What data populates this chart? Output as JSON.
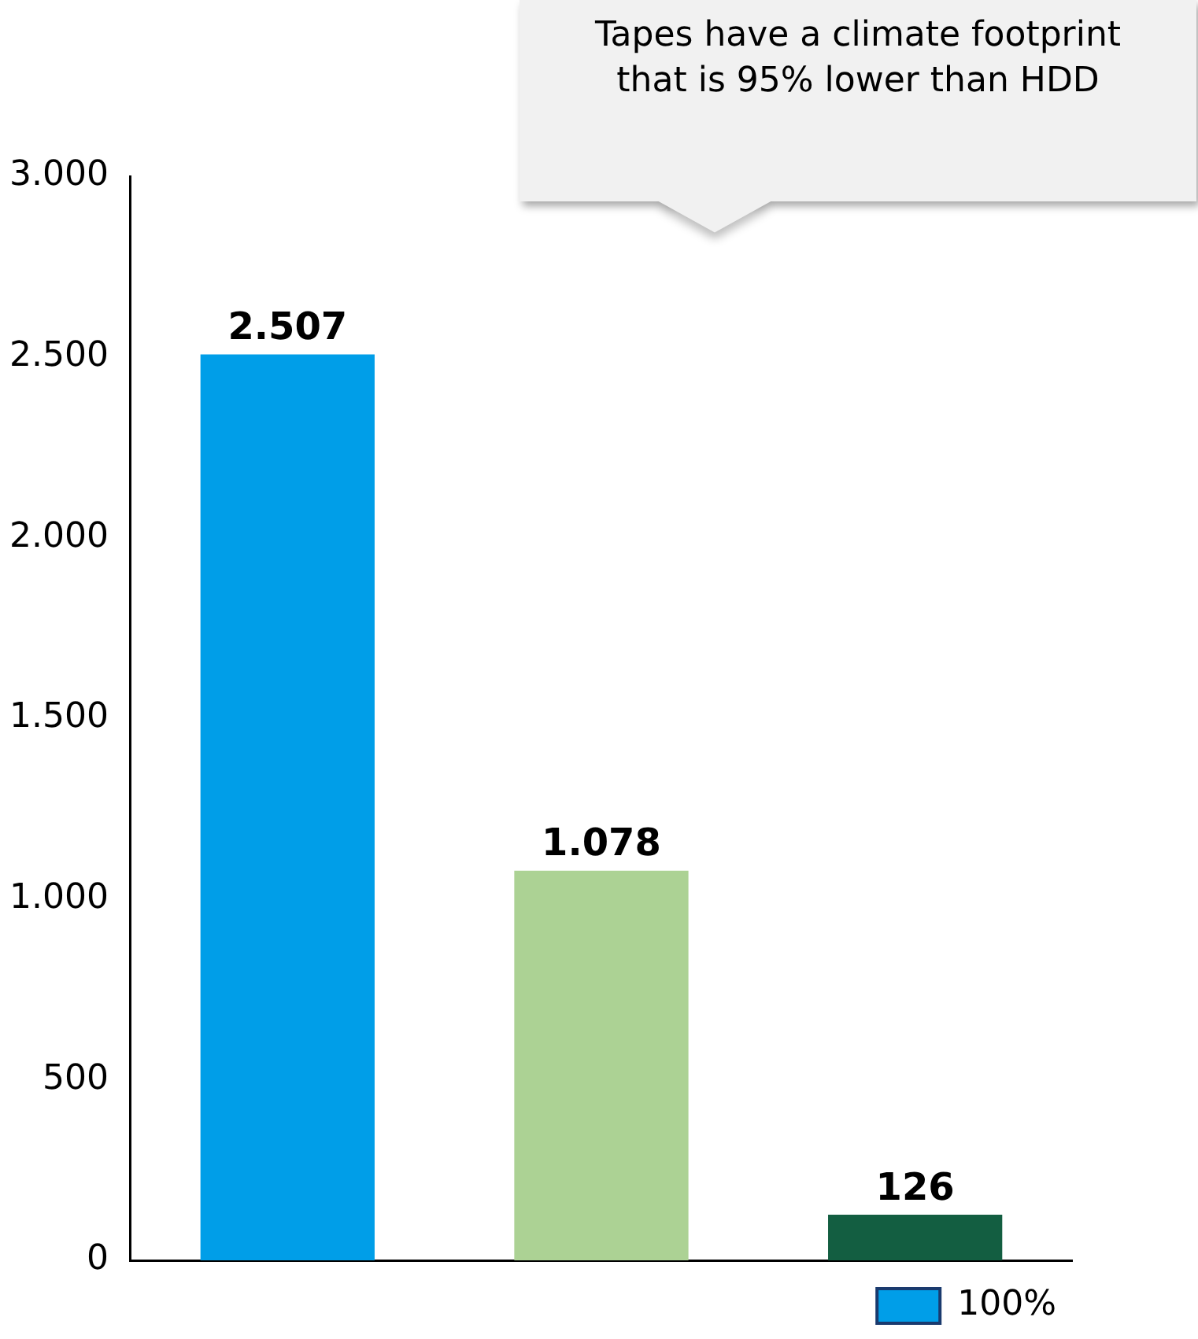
{
  "chart_data": {
    "type": "bar",
    "categories": [
      null,
      null,
      null
    ],
    "series": [
      {
        "name": "100%",
        "values": [
          2507,
          1078,
          126
        ],
        "value_labels": [
          "2.507",
          "1.078",
          "126"
        ]
      }
    ],
    "colors": [
      "#009ee8",
      "#acd294",
      "#135e41"
    ],
    "ylim": [
      0,
      3000
    ],
    "yticks": [
      {
        "value": 0,
        "label": "0"
      },
      {
        "value": 500,
        "label": "500"
      },
      {
        "value": 1000,
        "label": "1.000"
      },
      {
        "value": 1500,
        "label": "1.500"
      },
      {
        "value": 2000,
        "label": "2.000"
      },
      {
        "value": 2500,
        "label": "2.500"
      },
      {
        "value": 3000,
        "label": "3.000"
      }
    ],
    "grid": false,
    "legend": "bottom right",
    "annotations": [
      "Tapes have a climate footprint that is 95% lower than HDD"
    ]
  }
}
